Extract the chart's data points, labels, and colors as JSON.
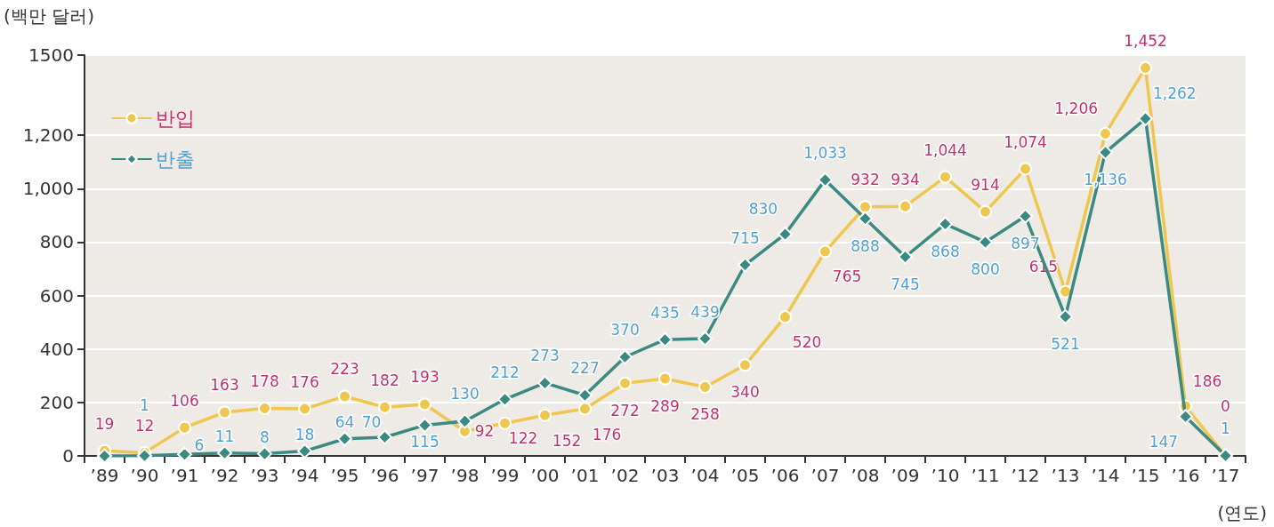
{
  "chart_data": {
    "type": "line",
    "ylabel": "(백만 달러)",
    "xlabel": "(연도)",
    "categories": [
      "’89",
      "’90",
      "’91",
      "’92",
      "’93",
      "’94",
      "’95",
      "’96",
      "’97",
      "’98",
      "’99",
      "’00",
      "’01",
      "’02",
      "’03",
      "’04",
      "’05",
      "’06",
      "’07",
      "’08",
      "’09",
      "’10",
      "’11",
      "’12",
      "’13",
      "’14",
      "’15",
      "’16",
      "’17"
    ],
    "ylim": [
      0,
      1500
    ],
    "yticks": [
      0,
      200,
      400,
      600,
      800,
      {
        "value": 1000,
        "label": "1,000"
      },
      {
        "value": 1200,
        "label": "1,200"
      },
      1500
    ],
    "grid": "y",
    "legend": "top left",
    "series": [
      {
        "name": "반입",
        "color": "#efc64e",
        "marker": "circle",
        "values": [
          19,
          12,
          106,
          163,
          178,
          176,
          223,
          182,
          193,
          92,
          122,
          152,
          176,
          272,
          289,
          258,
          340,
          520,
          765,
          932,
          934,
          1044,
          914,
          1074,
          615,
          1206,
          1452,
          186,
          0
        ],
        "value_labels": [
          "19",
          "12",
          "106",
          "163",
          "178",
          "176",
          "223",
          "182",
          "193",
          "92",
          "122",
          "152",
          "176",
          "272",
          "289",
          "258",
          "340",
          "520",
          "765",
          "932",
          "934",
          "1,044",
          "914",
          "1,074",
          "615",
          "1,206",
          "1,452",
          "186",
          "0"
        ]
      },
      {
        "name": "반출",
        "color": "#3b8a82",
        "marker": "diamond",
        "values": [
          0,
          1,
          6,
          11,
          8,
          18,
          64,
          70,
          115,
          130,
          212,
          273,
          227,
          370,
          435,
          439,
          715,
          830,
          1033,
          888,
          745,
          868,
          800,
          897,
          521,
          1136,
          1262,
          147,
          1
        ],
        "value_labels": [
          null,
          "1",
          "6",
          "11",
          "8",
          "18",
          "64",
          "70",
          "115",
          "130",
          "212",
          "273",
          "227",
          "370",
          "435",
          "439",
          "715",
          "830",
          "1,033",
          "888",
          "745",
          "868",
          "800",
          "897",
          "521",
          "1,136",
          "1,262",
          "147",
          "1"
        ]
      }
    ]
  }
}
